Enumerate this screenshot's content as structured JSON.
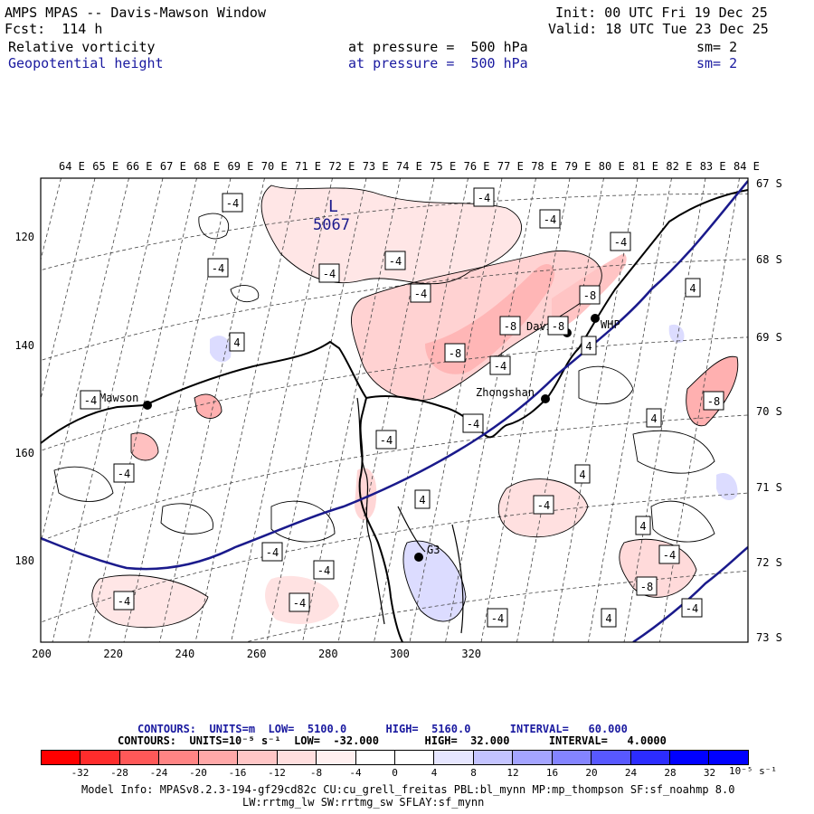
{
  "header": {
    "title": "AMPS MPAS -- Davis-Mawson Window",
    "forecast": "Fcst:  114 h",
    "init": "Init: 00 UTC Fri 19 Dec 25",
    "valid": "Valid: 18 UTC Tue 23 Dec 25",
    "field1": {
      "name": "Relative vorticity",
      "level": "at pressure =  500 hPa",
      "smooth": "sm= 2"
    },
    "field2": {
      "name": "Geopotential height",
      "level": "at pressure =  500 hPa",
      "smooth": "sm= 2"
    }
  },
  "map": {
    "top_longitudes": [
      "64 E",
      "65 E",
      "66 E",
      "67 E",
      "68 E",
      "69 E",
      "70 E",
      "71 E",
      "72 E",
      "73 E",
      "74 E",
      "75 E",
      "76 E",
      "77 E",
      "78 E",
      "79 E",
      "80 E",
      "81 E",
      "82 E",
      "83 E",
      "84 E"
    ],
    "right_latitudes": [
      "67 S",
      "68 S",
      "69 S",
      "70 S",
      "71 S",
      "72 S",
      "73 S"
    ],
    "x_grid_labels": [
      "200",
      "220",
      "240",
      "260",
      "280",
      "300",
      "320"
    ],
    "y_grid_labels": [
      "120",
      "140",
      "160",
      "180"
    ],
    "stations": [
      {
        "name": "Mawson"
      },
      {
        "name": "Davis"
      },
      {
        "name": "WHP"
      },
      {
        "name": "Zhongshan"
      },
      {
        "name": "G3"
      }
    ],
    "low_marker": {
      "symbol": "L",
      "value": "5067"
    },
    "contour_labels": [
      "-4",
      "-4",
      "-4",
      "-4",
      "-4",
      "-4",
      "-4",
      "-4",
      "-4",
      "-4",
      "-4",
      "-4",
      "-4",
      "-4",
      "-4",
      "-4",
      "-4",
      "-4",
      "-4",
      "-4",
      "-4",
      "-8",
      "-8",
      "-8",
      "-8",
      "-8",
      "-8",
      "4",
      "4",
      "4",
      "4",
      "4",
      "4",
      "4",
      "4"
    ]
  },
  "legend": {
    "contours1": "CONTOURS:  UNITS=m  LOW=  5100.0      HIGH=  5160.0      INTERVAL=   60.000",
    "contours2": "CONTOURS:  UNITS=10⁻⁵ s⁻¹  LOW=  -32.000       HIGH=  32.000      INTERVAL=   4.0000",
    "colorbar_ticks": [
      "-32",
      "-28",
      "-24",
      "-20",
      "-16",
      "-12",
      "-8",
      "-4",
      "0",
      "4",
      "8",
      "12",
      "16",
      "20",
      "24",
      "28",
      "32"
    ],
    "colorbar_unit": "10⁻⁵ s⁻¹",
    "colors": [
      "#ff0000",
      "#ff2c2c",
      "#ff5858",
      "#ff8484",
      "#ffa8a8",
      "#ffc6c6",
      "#ffdede",
      "#fff0f0",
      "#ffffff",
      "#ffffff",
      "#e6e6ff",
      "#c4c4ff",
      "#a4a4ff",
      "#8484ff",
      "#5858ff",
      "#2c2cff",
      "#0000ff",
      "#0000ff"
    ]
  },
  "footer": {
    "line1": "Model Info: MPASv8.2.3-194-gf29cd82c CU:cu_grell_freitas PBL:bl_mynn MP:mp_thompson SF:sf_noahmp 8.0",
    "line2": "LW:rrtmg_lw SW:rrtmg_sw SFLAY:sf_mynn"
  }
}
